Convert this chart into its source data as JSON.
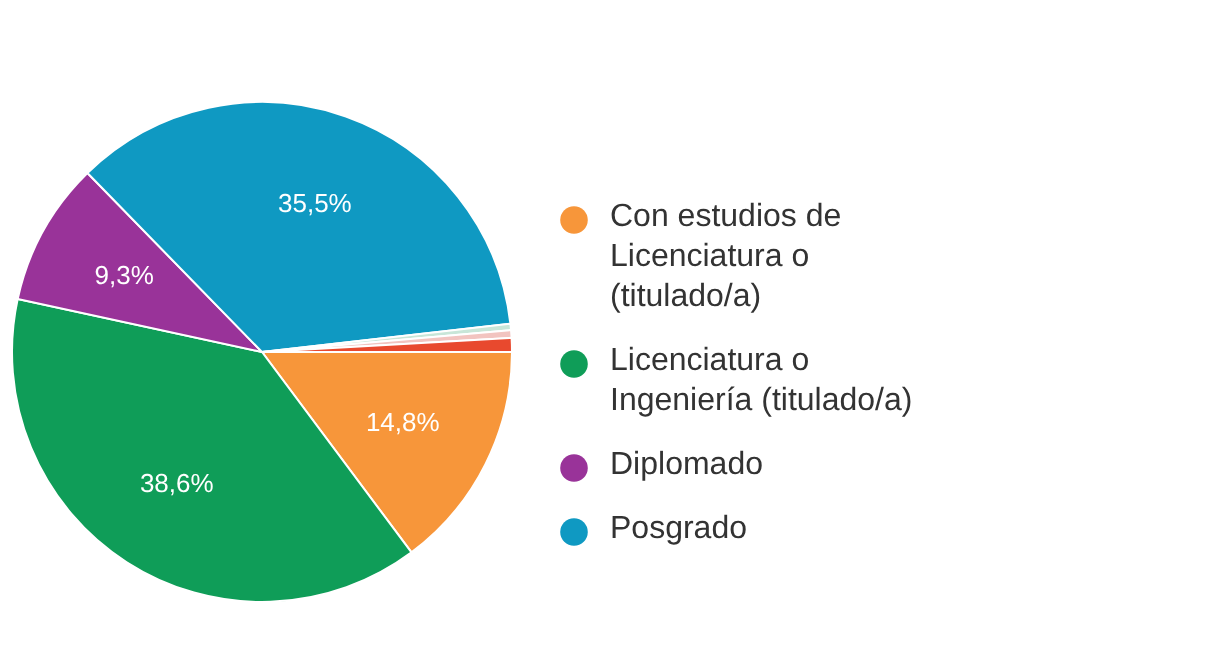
{
  "chart_data": {
    "type": "pie",
    "categories": [
      "Con estudios de Licenciatura o (titulado/a)",
      "Licenciatura o Ingeniería  (titulado/a)",
      "Diplomado",
      "Posgrado",
      null,
      null,
      null
    ],
    "values": [
      14.8,
      38.6,
      9.3,
      35.5,
      0.4,
      0.5,
      0.9
    ],
    "colors": [
      "#f7963a",
      "#0f9d58",
      "#993399",
      "#0f99c2",
      "#c8e6d8",
      "#f2c4c0",
      "#e8492e"
    ],
    "value_labels": [
      "14,8%",
      "38,6%",
      "9,3%",
      "35,5%",
      null,
      null,
      null
    ],
    "legend": "right"
  }
}
